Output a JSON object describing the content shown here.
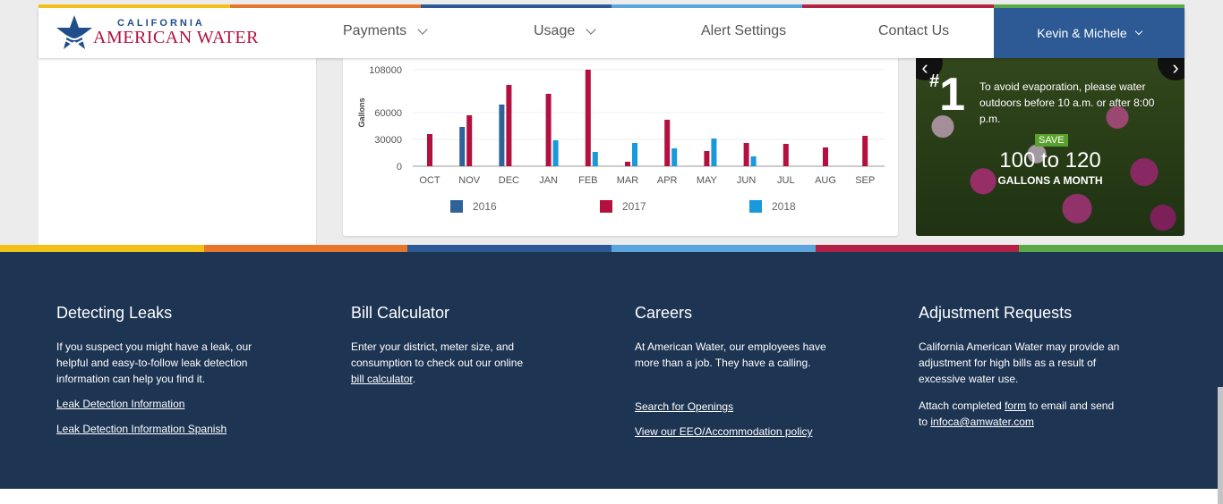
{
  "brand": {
    "line1": "CALIFORNIA",
    "line2": "AMERICAN WATER",
    "colors": {
      "blue": "#1f4e8a",
      "red": "#b0123f"
    }
  },
  "nav": {
    "payments": "Payments",
    "usage": "Usage",
    "alert_settings": "Alert Settings",
    "contact_us": "Contact Us",
    "user": "Kevin & Michele"
  },
  "stripe_colors": [
    "#f1c019",
    "#e6762c",
    "#2d5a94",
    "#5ba4dc",
    "#b32144",
    "#5aa846"
  ],
  "chart_data": {
    "type": "bar",
    "ylabel": "Gallons",
    "yticks": [
      0,
      30000,
      60000,
      108000
    ],
    "ylim": [
      0,
      108000
    ],
    "categories": [
      "OCT",
      "NOV",
      "DEC",
      "JAN",
      "FEB",
      "MAR",
      "APR",
      "MAY",
      "JUN",
      "JUL",
      "AUG",
      "SEP"
    ],
    "series": [
      {
        "name": "2016",
        "color": "#2e6299",
        "values": [
          0,
          44000,
          69000,
          0,
          0,
          0,
          0,
          0,
          0,
          0,
          0,
          0
        ]
      },
      {
        "name": "2017",
        "color": "#b3103f",
        "values": [
          36000,
          57000,
          91000,
          81000,
          108000,
          5000,
          52000,
          17000,
          26000,
          25000,
          21000,
          34000
        ]
      },
      {
        "name": "2018",
        "color": "#1799dc",
        "values": [
          0,
          0,
          0,
          29000,
          16000,
          26000,
          20000,
          31000,
          11000,
          0,
          0,
          0
        ]
      }
    ],
    "legend_position": "bottom"
  },
  "promo": {
    "hash": "#",
    "rank": "1",
    "tip": "To avoid evaporation, please water outdoors before 10 a.m. or after 8:00 p.m.",
    "save_label": "SAVE",
    "amount": "100 to 120",
    "unit": "GALLONS A MONTH",
    "prev_arrow": "‹",
    "next_arrow": "›"
  },
  "footer": {
    "leaks": {
      "title": "Detecting Leaks",
      "text": "If you suspect you might have a leak, our helpful and easy-to-follow leak detection information can help you find it.",
      "link1": "Leak Detection Information",
      "link2": "Leak Detection Information Spanish"
    },
    "calculator": {
      "title": "Bill Calculator",
      "text": "Enter your district, meter size, and consumption to check out our online",
      "link": "bill calculator",
      "suffix": "."
    },
    "careers": {
      "title": "Careers",
      "text": "At American Water, our employees have more than a job. They have a calling.",
      "link1": "Search for Openings",
      "link2": "View our EEO/Accommodation policy"
    },
    "adjustments": {
      "title": "Adjustment Requests",
      "text": "California American Water may provide an adjustment for high bills as a result of excessive water use.",
      "attach_prefix": "Attach completed",
      "form_link": "form",
      "attach_middle": "to email and send to",
      "email_link": "infoca@amwater.com"
    }
  }
}
